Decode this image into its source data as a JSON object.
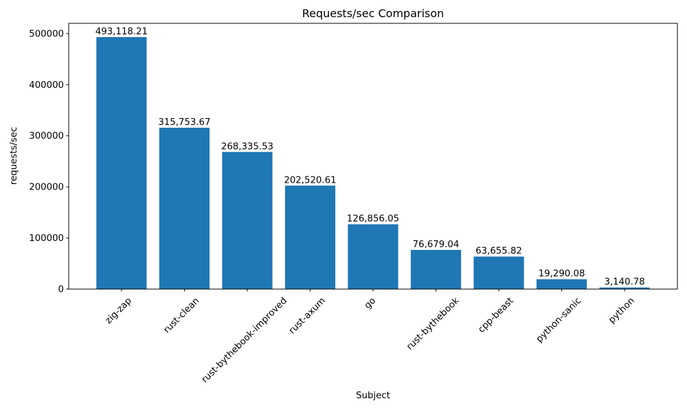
{
  "chart_data": {
    "type": "bar",
    "title": "Requests/sec Comparison",
    "xlabel": "Subject",
    "ylabel": "requests/sec",
    "categories": [
      "zig-zap",
      "rust-clean",
      "rust-bythebook-improved",
      "rust-axum",
      "go",
      "rust-bythebook",
      "cpp-beast",
      "python-sanic",
      "python"
    ],
    "values": [
      493118.21,
      315753.67,
      268335.53,
      202520.61,
      126856.05,
      76679.04,
      63655.82,
      19290.08,
      3140.78
    ],
    "value_labels": [
      "493,118.21",
      "315,753.67",
      "268,335.53",
      "202,520.61",
      "126,856.05",
      "76,679.04",
      "63,655.82",
      "19,290.08",
      "3,140.78"
    ],
    "y_ticks": [
      0,
      100000,
      200000,
      300000,
      400000,
      500000
    ],
    "y_tick_labels": [
      "0",
      "100000",
      "200000",
      "300000",
      "400000",
      "500000"
    ],
    "ylim": [
      0,
      520000
    ],
    "bar_color": "#1f77b4",
    "spine_color": "#000000",
    "legend": "none",
    "grid": false,
    "x_tick_rotation_deg": 45
  }
}
